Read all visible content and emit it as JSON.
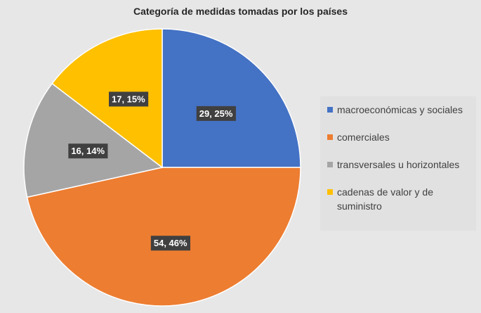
{
  "chart_data": {
    "type": "pie",
    "title": "Categoría de medidas tomadas por los países",
    "categories": [
      "macroeconómicas y sociales",
      "comerciales",
      "transversales u horizontales",
      "cadenas de valor y de suministro"
    ],
    "values": [
      29,
      54,
      16,
      17
    ],
    "percent_labels": [
      "25%",
      "46%",
      "14%",
      "15%"
    ],
    "data_labels": [
      "29, 25%",
      "54, 46%",
      "16, 14%",
      "17, 15%"
    ],
    "colors": [
      "#4472c4",
      "#ed7d31",
      "#a5a5a5",
      "#ffc000"
    ],
    "legend_placement": "right",
    "start_angle": "12 o'clock, clockwise"
  }
}
